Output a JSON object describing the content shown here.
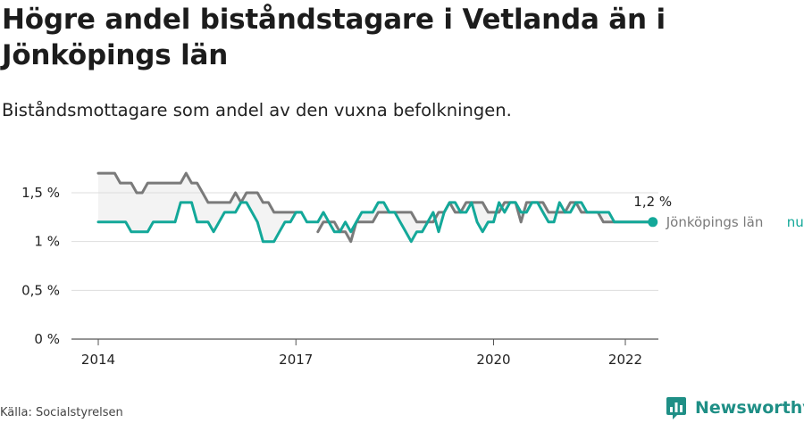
{
  "title": "Högre andel biståndstagare i Vetlanda än i Jönköpings län",
  "subtitle": "Biståndsmottagare som andel av den vuxna befolkningen.",
  "source": "Källa: Socialstyrelsen",
  "brand": "Newsworthy",
  "colors": {
    "municipality": "#7a7a7a",
    "county": "#13a899",
    "brand": "#1f8f86",
    "grid": "#dddddd",
    "band": "#f3f3f3"
  },
  "chart_data": {
    "type": "line",
    "x_unit": "month",
    "xlim": [
      "2014-01",
      "2022-06"
    ],
    "ylim": [
      0,
      1.7
    ],
    "y_ticks": [
      0,
      0.5,
      1,
      1.5
    ],
    "y_tick_labels": [
      "0 %",
      "0,5 %",
      "1 %",
      "1,5 %"
    ],
    "x_ticks": [
      "2014-01",
      "2017-01",
      "2020-01",
      "2022-01"
    ],
    "x_tick_labels": [
      "2014",
      "2017",
      "2020",
      "2022"
    ],
    "end_value_label": "1,2 %",
    "series": [
      {
        "name": "",
        "role": "municipality",
        "end_label_fragment": "nun",
        "start": "2014-01",
        "values": [
          1.7,
          1.7,
          1.7,
          1.7,
          1.6,
          1.6,
          1.6,
          1.5,
          1.5,
          1.6,
          1.6,
          1.6,
          1.6,
          1.6,
          1.6,
          1.6,
          1.7,
          1.6,
          1.6,
          1.5,
          1.4,
          1.4,
          1.4,
          1.4,
          1.4,
          1.5,
          1.4,
          1.5,
          1.5,
          1.5,
          1.4,
          1.4,
          1.3,
          1.3,
          1.3,
          1.3,
          1.3,
          1.3,
          null,
          null,
          1.1,
          1.2,
          1.2,
          1.2,
          1.1,
          1.1,
          1.0,
          1.2,
          1.2,
          1.2,
          1.2,
          1.3,
          1.3,
          1.3,
          1.3,
          1.3,
          1.3,
          1.3,
          1.2,
          1.2,
          1.2,
          1.2,
          1.3,
          1.3,
          1.4,
          1.3,
          1.3,
          1.4,
          1.4,
          1.4,
          1.4,
          1.3,
          1.3,
          1.3,
          1.4,
          1.4,
          1.4,
          1.2,
          1.4,
          1.4,
          1.4,
          1.4,
          1.3,
          1.3,
          1.3,
          1.3,
          1.4,
          1.4,
          1.3,
          1.3,
          1.3,
          1.3,
          1.2,
          1.2,
          1.2,
          1.2,
          1.2,
          1.2,
          1.2,
          1.2,
          1.2,
          1.2
        ]
      },
      {
        "name": "Jönköpings län",
        "role": "county",
        "start": "2014-01",
        "values": [
          1.2,
          1.2,
          1.2,
          1.2,
          1.2,
          1.2,
          1.1,
          1.1,
          1.1,
          1.1,
          1.2,
          1.2,
          1.2,
          1.2,
          1.2,
          1.4,
          1.4,
          1.4,
          1.2,
          1.2,
          1.2,
          1.1,
          1.2,
          1.3,
          1.3,
          1.3,
          1.4,
          1.4,
          1.3,
          1.2,
          1.0,
          1.0,
          1.0,
          1.1,
          1.2,
          1.2,
          1.3,
          1.3,
          1.2,
          1.2,
          1.2,
          1.3,
          1.2,
          1.1,
          1.1,
          1.2,
          1.1,
          1.2,
          1.3,
          1.3,
          1.3,
          1.4,
          1.4,
          1.3,
          1.3,
          1.2,
          1.1,
          1.0,
          1.1,
          1.1,
          1.2,
          1.3,
          1.1,
          1.3,
          1.4,
          1.4,
          1.3,
          1.3,
          1.4,
          1.2,
          1.1,
          1.2,
          1.2,
          1.4,
          1.3,
          1.4,
          1.4,
          1.3,
          1.3,
          1.4,
          1.4,
          1.3,
          1.2,
          1.2,
          1.4,
          1.3,
          1.3,
          1.4,
          1.4,
          1.3,
          1.3,
          1.3,
          1.3,
          1.3,
          1.2,
          1.2,
          1.2,
          1.2,
          1.2,
          1.2,
          1.2,
          1.2
        ]
      }
    ]
  }
}
